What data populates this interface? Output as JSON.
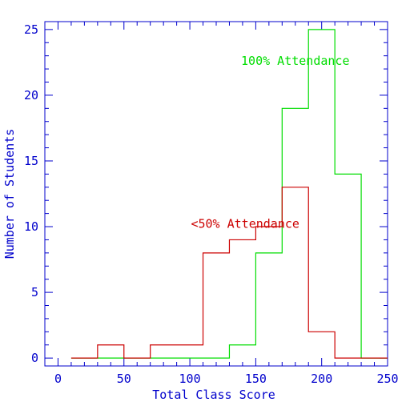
{
  "chart_data": {
    "type": "histogram",
    "xlabel": "Total Class Score",
    "ylabel": "Number of Students",
    "xlim": [
      -10,
      250
    ],
    "ylim": [
      -0.6,
      25.6
    ],
    "x_ticks": [
      0,
      50,
      100,
      150,
      200,
      250
    ],
    "y_ticks": [
      0,
      5,
      10,
      15,
      20,
      25
    ],
    "grid": false,
    "axis_color": "#0000cc",
    "series": [
      {
        "name": "100% Attendance",
        "color": "#00dd00",
        "bin_edges": [
          10,
          30,
          50,
          70,
          90,
          110,
          130,
          150,
          170,
          190,
          210,
          230,
          250
        ],
        "counts": [
          0,
          0,
          0,
          0,
          0,
          0,
          1,
          8,
          19,
          25,
          14,
          0
        ]
      },
      {
        "name": "<50% Attendance",
        "color": "#cc0000",
        "bin_edges": [
          10,
          30,
          50,
          70,
          90,
          110,
          130,
          150,
          170,
          190,
          210,
          230,
          250
        ],
        "counts": [
          0,
          1,
          0,
          1,
          1,
          8,
          9,
          10,
          13,
          2,
          0,
          0
        ]
      }
    ],
    "annotations": [
      {
        "text": "100% Attendance",
        "x": 180,
        "y": 22.3,
        "color": "#00dd00"
      },
      {
        "text": "<50% Attendance",
        "x": 142,
        "y": 9.9,
        "color": "#cc0000"
      }
    ]
  }
}
